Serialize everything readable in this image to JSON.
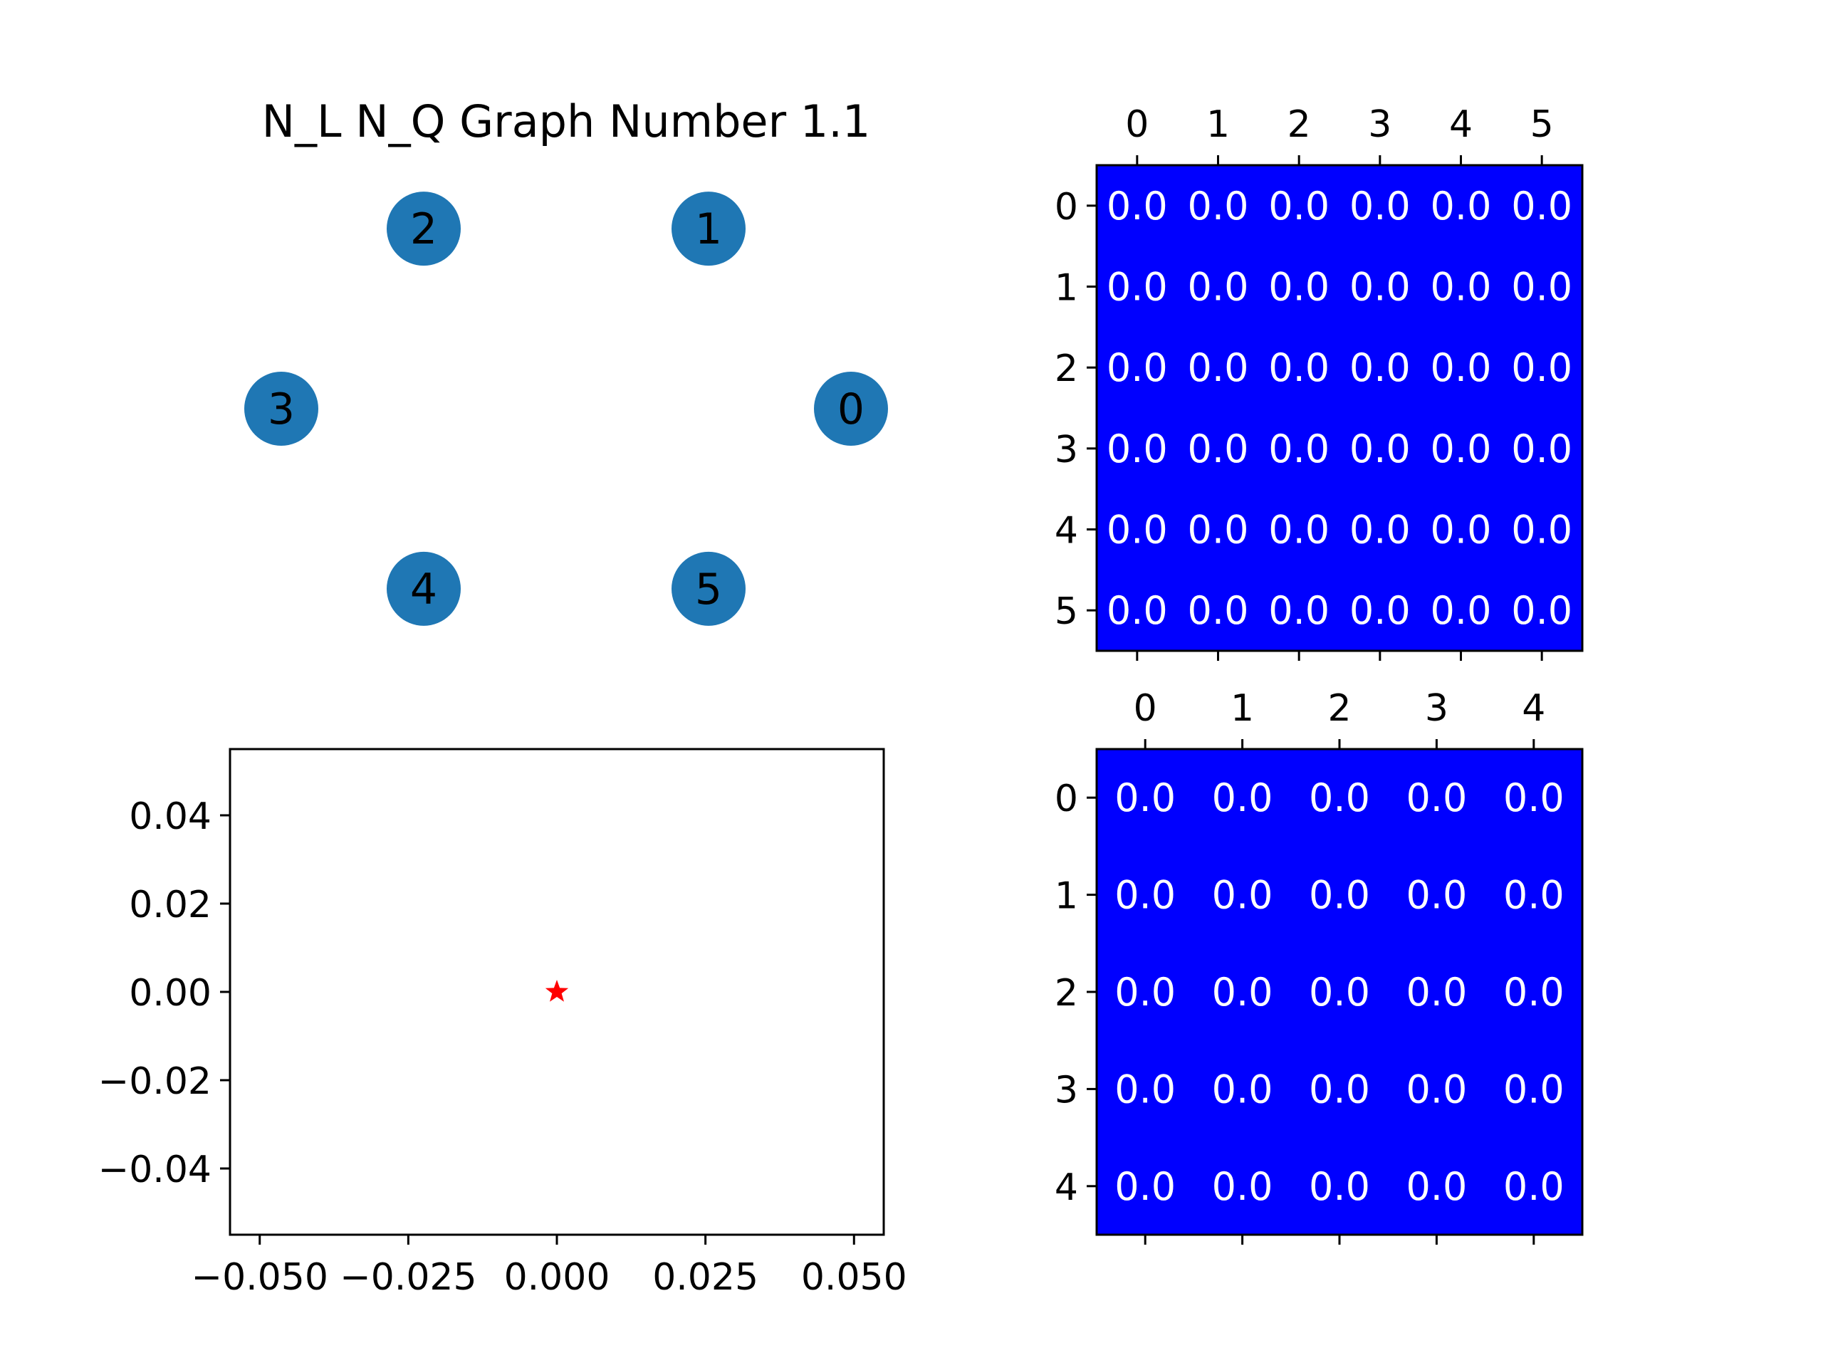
{
  "colors": {
    "background": "#ffffff",
    "node_fill": "#1f77b4",
    "matrix_fill": "#0000ff",
    "matrix_text": "#ffffff",
    "marker": "#ff0000",
    "axis": "#000000"
  },
  "chart_data": [
    {
      "type": "graph",
      "title": "N_L  N_Q Graph Number 1.1",
      "nodes": [
        {
          "label": "0",
          "angle_deg": 0
        },
        {
          "label": "1",
          "angle_deg": 60
        },
        {
          "label": "2",
          "angle_deg": 120
        },
        {
          "label": "3",
          "angle_deg": 180
        },
        {
          "label": "4",
          "angle_deg": 240
        },
        {
          "label": "5",
          "angle_deg": 300
        }
      ],
      "edges": []
    },
    {
      "type": "heatmap",
      "x_ticks": [
        "0",
        "1",
        "2",
        "3",
        "4",
        "5"
      ],
      "y_ticks": [
        "0",
        "1",
        "2",
        "3",
        "4",
        "5"
      ],
      "values": [
        [
          "0.0",
          "0.0",
          "0.0",
          "0.0",
          "0.0",
          "0.0"
        ],
        [
          "0.0",
          "0.0",
          "0.0",
          "0.0",
          "0.0",
          "0.0"
        ],
        [
          "0.0",
          "0.0",
          "0.0",
          "0.0",
          "0.0",
          "0.0"
        ],
        [
          "0.0",
          "0.0",
          "0.0",
          "0.0",
          "0.0",
          "0.0"
        ],
        [
          "0.0",
          "0.0",
          "0.0",
          "0.0",
          "0.0",
          "0.0"
        ],
        [
          "0.0",
          "0.0",
          "0.0",
          "0.0",
          "0.0",
          "0.0"
        ]
      ]
    },
    {
      "type": "scatter",
      "marker": "star",
      "points": [
        {
          "x": 0.0,
          "y": 0.0
        }
      ],
      "xlim": [
        -0.055,
        0.055
      ],
      "ylim": [
        -0.055,
        0.055
      ],
      "x_ticks": [
        -0.05,
        -0.025,
        0.0,
        0.025,
        0.05
      ],
      "x_tick_labels": [
        "−0.050",
        "−0.025",
        "0.000",
        "0.025",
        "0.050"
      ],
      "y_ticks": [
        0.04,
        0.02,
        0.0,
        -0.02,
        -0.04
      ],
      "y_tick_labels": [
        "0.04",
        "0.02",
        "0.00",
        "−0.02",
        "−0.04"
      ]
    },
    {
      "type": "heatmap",
      "x_ticks": [
        "0",
        "1",
        "2",
        "3",
        "4"
      ],
      "y_ticks": [
        "0",
        "1",
        "2",
        "3",
        "4"
      ],
      "values": [
        [
          "0.0",
          "0.0",
          "0.0",
          "0.0",
          "0.0"
        ],
        [
          "0.0",
          "0.0",
          "0.0",
          "0.0",
          "0.0"
        ],
        [
          "0.0",
          "0.0",
          "0.0",
          "0.0",
          "0.0"
        ],
        [
          "0.0",
          "0.0",
          "0.0",
          "0.0",
          "0.0"
        ],
        [
          "0.0",
          "0.0",
          "0.0",
          "0.0",
          "0.0"
        ]
      ]
    }
  ]
}
